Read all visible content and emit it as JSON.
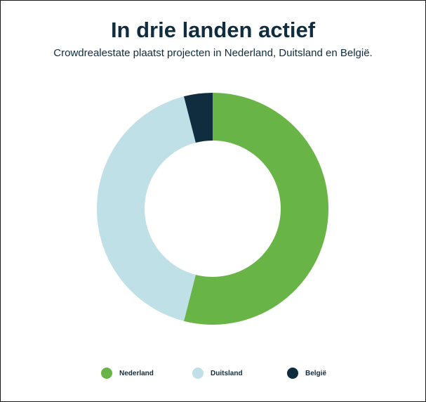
{
  "chart_data": {
    "type": "pie",
    "title": "In drie landen actief",
    "subtitle": "Crowdrealestate plaatst projecten in Nederland, Duitsland en België.",
    "categories": [
      "Nederland",
      "Duitsland",
      "België"
    ],
    "values": [
      54,
      42,
      4
    ],
    "colors": [
      "#68b446",
      "#bfe0e6",
      "#0f2d3f"
    ],
    "donut": true,
    "legend_position": "bottom"
  },
  "legend": {
    "items": [
      {
        "label": "Nederland",
        "color": "#68b446"
      },
      {
        "label": "Duitsland",
        "color": "#bfe0e6"
      },
      {
        "label": "België",
        "color": "#0f2d3f"
      }
    ]
  }
}
